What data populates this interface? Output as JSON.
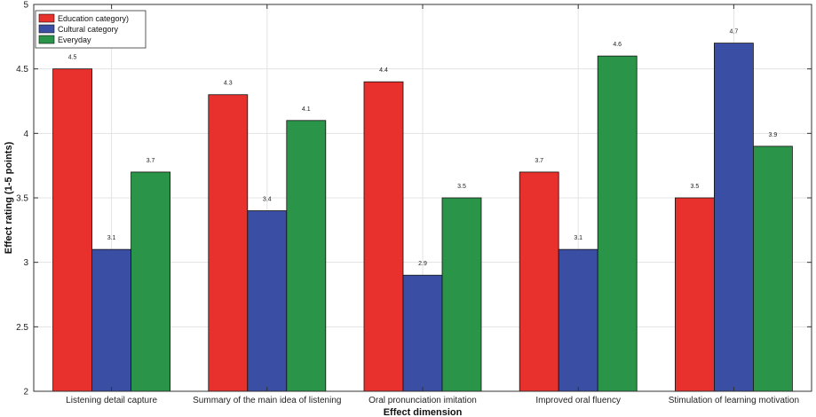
{
  "chart_data": {
    "type": "bar",
    "title": "",
    "xlabel": "Effect dimension",
    "ylabel": "Effect rating (1-5 points)",
    "ylim": [
      2,
      5
    ],
    "yticks": [
      "2",
      "2.5",
      "3",
      "3.5",
      "4",
      "4.5",
      "5"
    ],
    "ytick_values": [
      2,
      2.5,
      3,
      3.5,
      4,
      4.5,
      5
    ],
    "grid": true,
    "legend_position": "top-left",
    "categories": [
      "Listening detail capture",
      "Summary of the main idea of listening",
      "Oral pronunciation imitation",
      "Improved oral fluency",
      "Stimulation of learning motivation"
    ],
    "series": [
      {
        "name": "Education category)",
        "color": "#e8302c",
        "values": [
          4.5,
          4.3,
          4.4,
          3.7,
          3.5
        ]
      },
      {
        "name": "Cultural category",
        "color": "#3a4ea3",
        "values": [
          3.1,
          3.4,
          2.9,
          3.1,
          4.7
        ]
      },
      {
        "name": "Everyday",
        "color": "#2a9448",
        "values": [
          3.7,
          4.1,
          3.5,
          4.6,
          3.9
        ]
      }
    ]
  }
}
